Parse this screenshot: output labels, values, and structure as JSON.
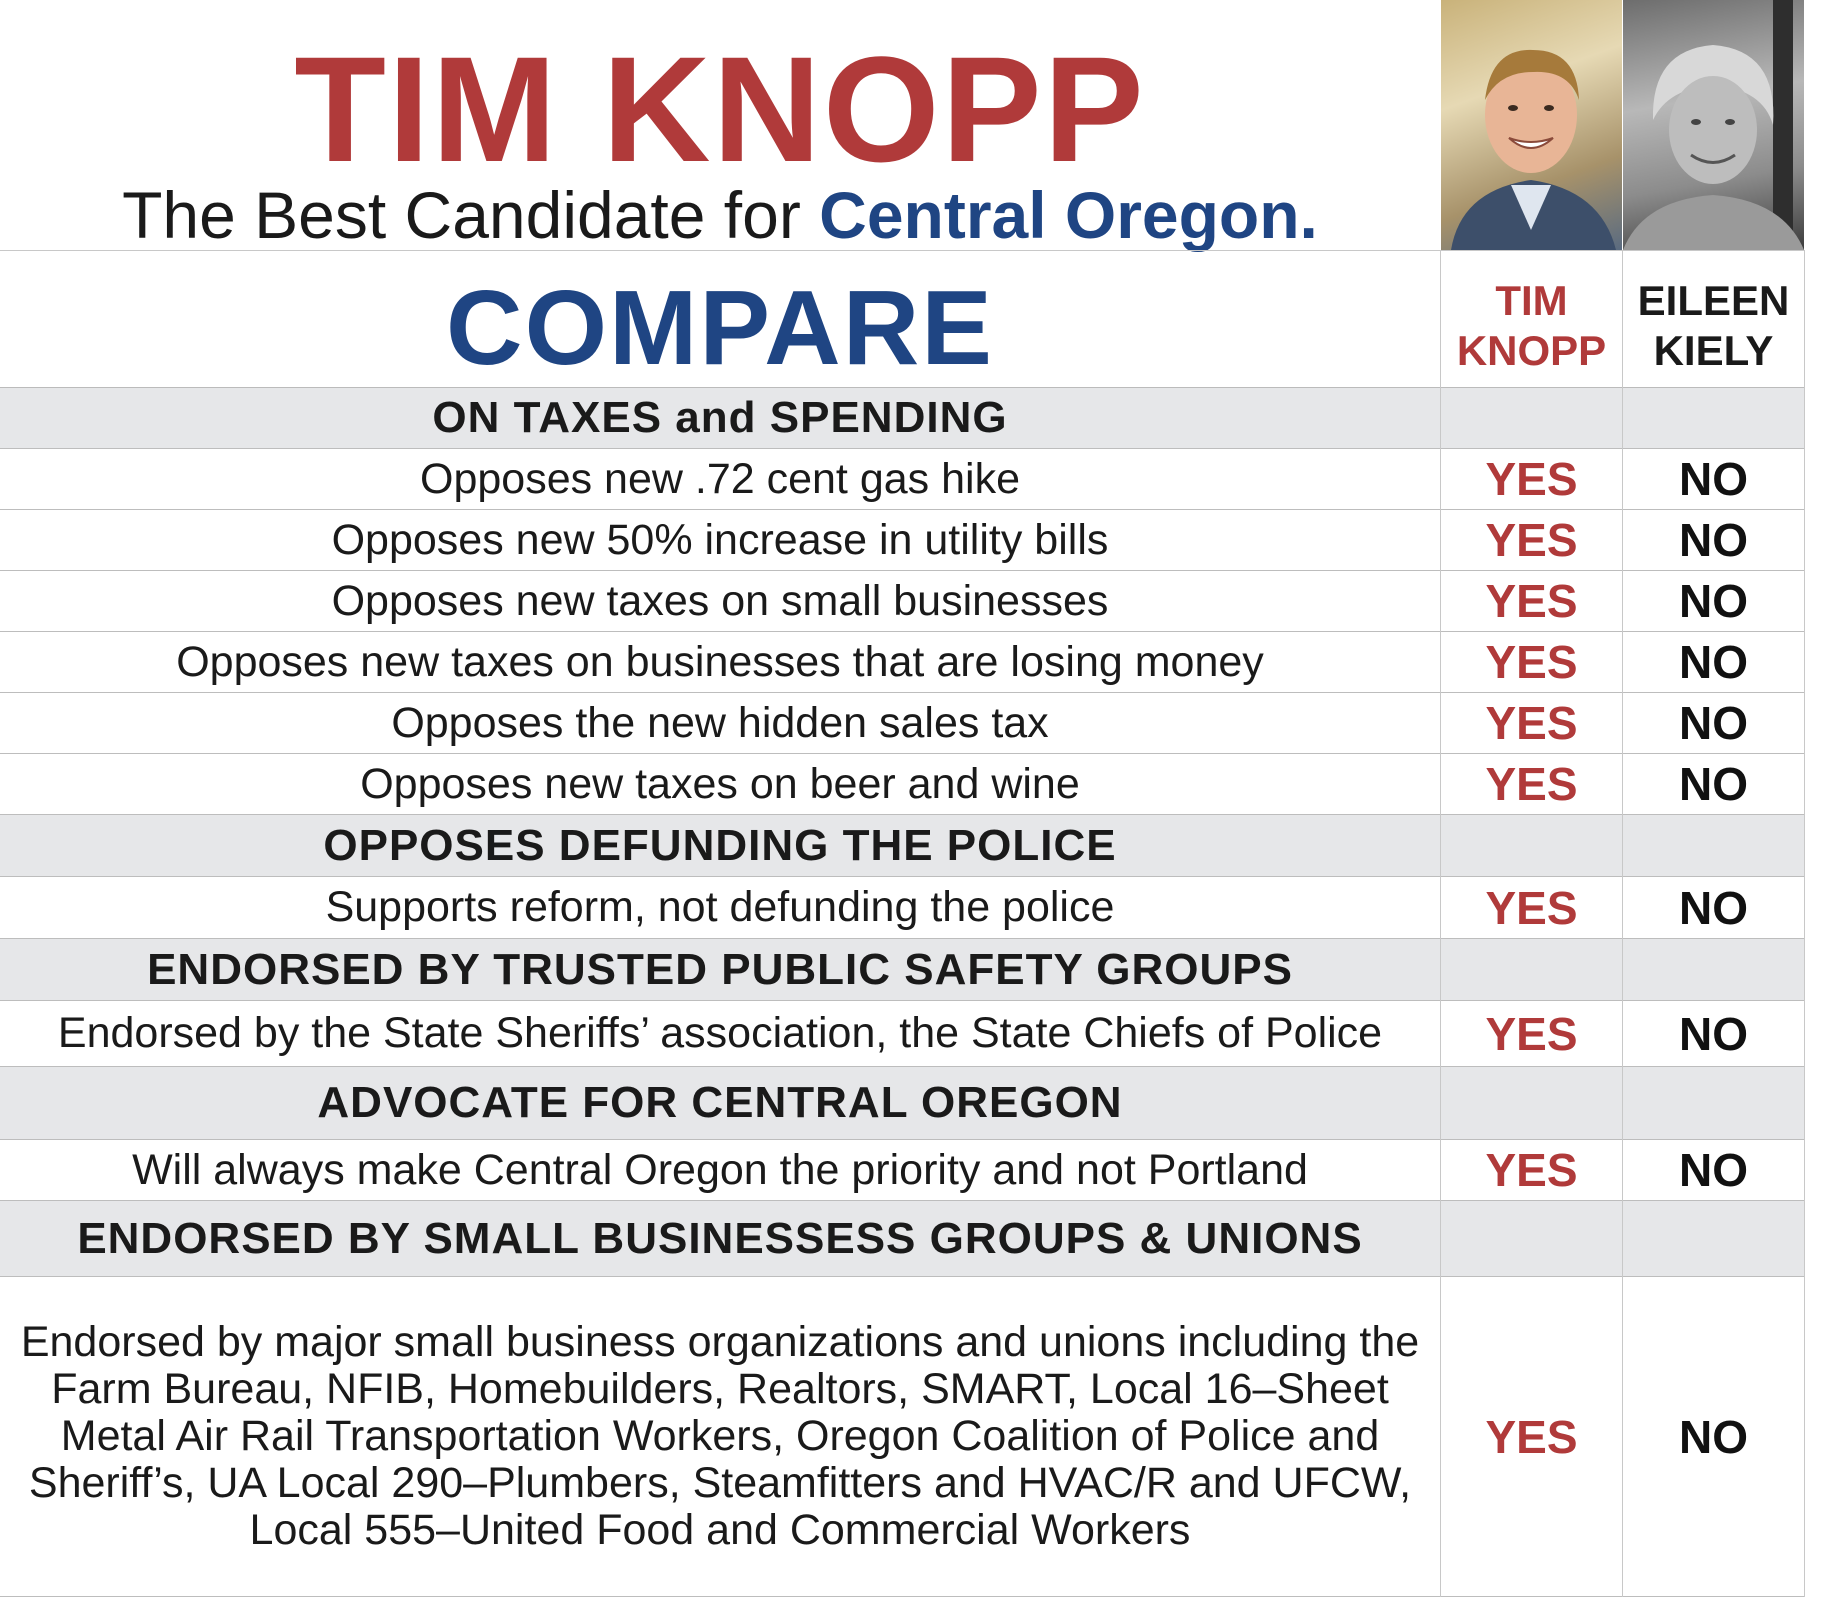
{
  "header": {
    "name": "TIM KNOPP",
    "tagline_prefix": "The Best Candidate for ",
    "tagline_emphasis": "Central Oregon.",
    "photo_a": "tim-knopp-photo",
    "photo_b": "eileen-kiely-photo"
  },
  "compare_title": "COMPARE",
  "candidates": {
    "a": {
      "line1": "TIM",
      "line2": "KNOPP"
    },
    "b": {
      "line1": "EILEEN",
      "line2": "KIELY"
    }
  },
  "colors": {
    "red": "#b03a3a",
    "blue": "#1f4583",
    "section_bg": "#e6e7e9"
  },
  "rows": [
    {
      "type": "section",
      "label": "ON TAXES and SPENDING"
    },
    {
      "type": "item",
      "label": "Opposes new .72 cent gas hike",
      "a": "YES",
      "b": "NO"
    },
    {
      "type": "item",
      "label": "Opposes new 50% increase in utility bills",
      "a": "YES",
      "b": "NO"
    },
    {
      "type": "item",
      "label": "Opposes new taxes on small businesses",
      "a": "YES",
      "b": "NO"
    },
    {
      "type": "item",
      "label": "Opposes new taxes on businesses that are losing money",
      "a": "YES",
      "b": "NO"
    },
    {
      "type": "item",
      "label": "Opposes the new hidden sales tax",
      "a": "YES",
      "b": "NO"
    },
    {
      "type": "item",
      "label": "Opposes new taxes on beer and wine",
      "a": "YES",
      "b": "NO"
    },
    {
      "type": "section",
      "label": "OPPOSES DEFUNDING THE POLICE"
    },
    {
      "type": "item",
      "label": "Supports reform, not defunding the police",
      "a": "YES",
      "b": "NO"
    },
    {
      "type": "section",
      "label": "ENDORSED BY TRUSTED PUBLIC SAFETY GROUPS"
    },
    {
      "type": "item",
      "label": "Endorsed by the State Sheriffs’ association, the State Chiefs of Police",
      "a": "YES",
      "b": "NO"
    },
    {
      "type": "section",
      "label": "ADVOCATE FOR CENTRAL OREGON"
    },
    {
      "type": "item",
      "label": "Will always make Central Oregon the priority and not Portland",
      "a": "YES",
      "b": "NO"
    },
    {
      "type": "section",
      "label": "ENDORSED BY SMALL BUSINESSESS GROUPS & UNIONS"
    },
    {
      "type": "item",
      "label": "Endorsed by major small business organizations and unions including the Farm Bureau, NFIB, Homebuilders, Realtors, SMART, Local 16–Sheet Metal Air Rail Transportation Workers, Oregon Coalition of Police and Sheriff’s, UA Local 290–Plumbers, Steamfitters and HVAC/R and UFCW, Local 555–United Food and Commercial Workers",
      "a": "YES",
      "b": "NO"
    }
  ]
}
